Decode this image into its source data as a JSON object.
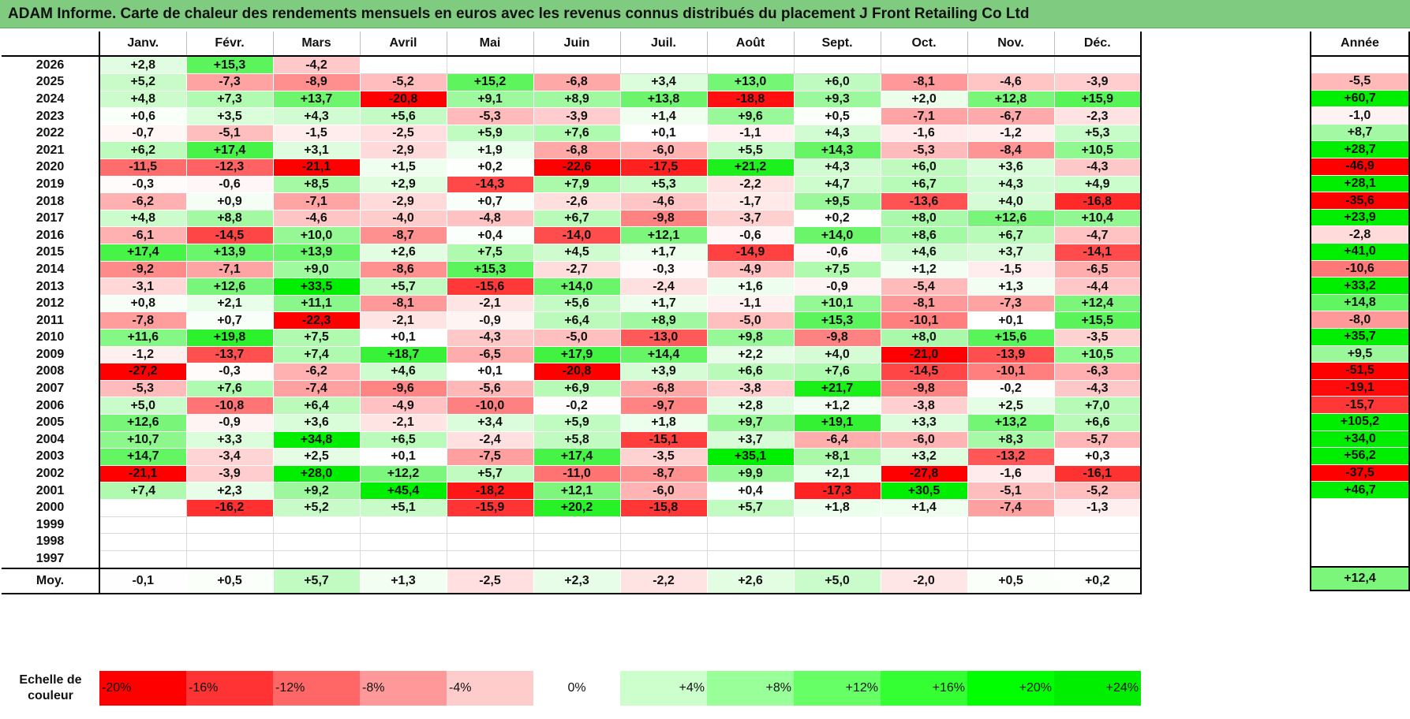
{
  "title": "ADAM Informe. Carte de chaleur des rendements mensuels en euros avec les revenus connus distribués du placement J Front Retailing Co Ltd",
  "chart_data": {
    "type": "heatmap",
    "title": "ADAM Informe. Carte de chaleur des rendements mensuels en euros avec les revenus connus distribués du placement J Front Retailing Co Ltd",
    "columns": [
      "Janv.",
      "Févr.",
      "Mars",
      "Avril",
      "Mai",
      "Juin",
      "Juil.",
      "Août",
      "Sept.",
      "Oct.",
      "Nov.",
      "Déc."
    ],
    "annual_header": "Année",
    "rows": [
      {
        "year": "2026",
        "values": [
          "+2,8",
          "+15,3",
          "-4,2",
          "",
          "",
          "",
          "",
          "",
          "",
          "",
          "",
          ""
        ],
        "annual": ""
      },
      {
        "year": "2025",
        "values": [
          "+5,2",
          "-7,3",
          "-8,9",
          "-5,2",
          "+15,2",
          "-6,8",
          "+3,4",
          "+13,0",
          "+6,0",
          "-8,1",
          "-4,6",
          "-3,9"
        ],
        "annual": "-5,5"
      },
      {
        "year": "2024",
        "values": [
          "+4,8",
          "+7,3",
          "+13,7",
          "-20,8",
          "+9,1",
          "+8,9",
          "+13,8",
          "-18,8",
          "+9,3",
          "+2,0",
          "+12,8",
          "+15,9"
        ],
        "annual": "+60,7"
      },
      {
        "year": "2023",
        "values": [
          "+0,6",
          "+3,5",
          "+4,3",
          "+5,6",
          "-5,3",
          "-3,9",
          "+1,4",
          "+9,6",
          "+0,5",
          "-7,1",
          "-6,7",
          "-2,3"
        ],
        "annual": "-1,0"
      },
      {
        "year": "2022",
        "values": [
          "-0,7",
          "-5,1",
          "-1,5",
          "-2,5",
          "+5,9",
          "+7,6",
          "+0,1",
          "-1,1",
          "+4,3",
          "-1,6",
          "-1,2",
          "+5,3"
        ],
        "annual": "+8,7"
      },
      {
        "year": "2021",
        "values": [
          "+6,2",
          "+17,4",
          "+3,1",
          "-2,9",
          "+1,9",
          "-6,8",
          "-6,0",
          "+5,5",
          "+14,3",
          "-5,3",
          "-8,4",
          "+10,5"
        ],
        "annual": "+28,7"
      },
      {
        "year": "2020",
        "values": [
          "-11,5",
          "-12,3",
          "-21,1",
          "+1,5",
          "+0,2",
          "-22,6",
          "-17,5",
          "+21,2",
          "+4,3",
          "+6,0",
          "+3,6",
          "-4,3"
        ],
        "annual": "-46,9"
      },
      {
        "year": "2019",
        "values": [
          "-0,3",
          "-0,6",
          "+8,5",
          "+2,9",
          "-14,3",
          "+7,9",
          "+5,3",
          "-2,2",
          "+4,7",
          "+6,7",
          "+4,3",
          "+4,9"
        ],
        "annual": "+28,1"
      },
      {
        "year": "2018",
        "values": [
          "-6,2",
          "+0,9",
          "-7,1",
          "-2,9",
          "+0,7",
          "-2,6",
          "-4,6",
          "-1,7",
          "+9,5",
          "-13,6",
          "+4,0",
          "-16,8"
        ],
        "annual": "-35,6"
      },
      {
        "year": "2017",
        "values": [
          "+4,8",
          "+8,8",
          "-4,6",
          "-4,0",
          "-4,8",
          "+6,7",
          "-9,8",
          "-3,7",
          "+0,2",
          "+8,0",
          "+12,6",
          "+10,4"
        ],
        "annual": "+23,9"
      },
      {
        "year": "2016",
        "values": [
          "-6,1",
          "-14,5",
          "+10,0",
          "-8,7",
          "+0,4",
          "-14,0",
          "+12,1",
          "-0,6",
          "+14,0",
          "+8,6",
          "+6,7",
          "-4,7"
        ],
        "annual": "-2,8"
      },
      {
        "year": "2015",
        "values": [
          "+17,4",
          "+13,9",
          "+13,9",
          "+2,6",
          "+7,5",
          "+4,5",
          "+1,7",
          "-14,9",
          "-0,6",
          "+4,6",
          "+3,7",
          "-14,1"
        ],
        "annual": "+41,0"
      },
      {
        "year": "2014",
        "values": [
          "-9,2",
          "-7,1",
          "+9,0",
          "-8,6",
          "+15,3",
          "-2,7",
          "-0,3",
          "-4,9",
          "+7,5",
          "+1,2",
          "-1,5",
          "-6,5"
        ],
        "annual": "-10,6"
      },
      {
        "year": "2013",
        "values": [
          "-3,1",
          "+12,6",
          "+33,5",
          "+5,7",
          "-15,6",
          "+14,0",
          "-2,4",
          "+1,6",
          "-0,9",
          "-5,4",
          "+1,3",
          "-4,4"
        ],
        "annual": "+33,2"
      },
      {
        "year": "2012",
        "values": [
          "+0,8",
          "+2,1",
          "+11,1",
          "-8,1",
          "-2,1",
          "+5,6",
          "+1,7",
          "-1,1",
          "+10,1",
          "-8,1",
          "-7,3",
          "+12,4"
        ],
        "annual": "+14,8"
      },
      {
        "year": "2011",
        "values": [
          "-7,8",
          "+0,7",
          "-22,3",
          "-2,1",
          "-0,9",
          "+6,4",
          "+8,9",
          "-5,0",
          "+15,3",
          "-10,1",
          "+0,1",
          "+15,5"
        ],
        "annual": "-8,0"
      },
      {
        "year": "2010",
        "values": [
          "+11,6",
          "+19,8",
          "+7,5",
          "+0,1",
          "-4,3",
          "-5,0",
          "-13,0",
          "+9,8",
          "-9,8",
          "+8,0",
          "+15,6",
          "-3,5"
        ],
        "annual": "+35,7"
      },
      {
        "year": "2009",
        "values": [
          "-1,2",
          "-13,7",
          "+7,4",
          "+18,7",
          "-6,5",
          "+17,9",
          "+14,4",
          "+2,2",
          "+4,0",
          "-21,0",
          "-13,9",
          "+10,5"
        ],
        "annual": "+9,5"
      },
      {
        "year": "2008",
        "values": [
          "-27,2",
          "-0,3",
          "-6,2",
          "+4,6",
          "+0,1",
          "-20,8",
          "+3,9",
          "+6,6",
          "+7,6",
          "-14,5",
          "-10,1",
          "-6,3"
        ],
        "annual": "-51,5"
      },
      {
        "year": "2007",
        "values": [
          "-5,3",
          "+7,6",
          "-7,4",
          "-9,6",
          "-5,6",
          "+6,9",
          "-6,8",
          "-3,8",
          "+21,7",
          "-9,8",
          "-0,2",
          "-4,3"
        ],
        "annual": "-19,1"
      },
      {
        "year": "2006",
        "values": [
          "+5,0",
          "-10,8",
          "+6,4",
          "-4,9",
          "-10,0",
          "-0,2",
          "-9,7",
          "+2,8",
          "+1,2",
          "-3,8",
          "+2,5",
          "+7,0"
        ],
        "annual": "-15,7"
      },
      {
        "year": "2005",
        "values": [
          "+12,6",
          "-0,9",
          "+3,6",
          "-2,1",
          "+3,4",
          "+5,9",
          "+1,8",
          "+9,7",
          "+19,1",
          "+3,3",
          "+13,2",
          "+6,6"
        ],
        "annual": "+105,2"
      },
      {
        "year": "2004",
        "values": [
          "+10,7",
          "+3,3",
          "+34,8",
          "+6,5",
          "-2,4",
          "+5,8",
          "-15,1",
          "+3,7",
          "-6,4",
          "-6,0",
          "+8,3",
          "-5,7"
        ],
        "annual": "+34,0"
      },
      {
        "year": "2003",
        "values": [
          "+14,7",
          "-3,4",
          "+2,5",
          "+0,1",
          "-7,5",
          "+17,4",
          "-3,5",
          "+35,1",
          "+8,1",
          "+3,2",
          "-13,2",
          "+0,3"
        ],
        "annual": "+56,2"
      },
      {
        "year": "2002",
        "values": [
          "-21,1",
          "-3,9",
          "+28,0",
          "+12,2",
          "+5,7",
          "-11,0",
          "-8,7",
          "+9,9",
          "+2,1",
          "-27,8",
          "-1,6",
          "-16,1"
        ],
        "annual": "-37,5"
      },
      {
        "year": "2001",
        "values": [
          "+7,4",
          "+2,3",
          "+9,2",
          "+45,4",
          "-18,2",
          "+12,1",
          "-6,0",
          "+0,4",
          "-17,3",
          "+30,5",
          "-5,1",
          "-5,2"
        ],
        "annual": "+46,7"
      },
      {
        "year": "2000",
        "values": [
          "",
          "-16,2",
          "+5,2",
          "+5,1",
          "-15,9",
          "+20,2",
          "-15,8",
          "+5,7",
          "+1,8",
          "+1,4",
          "-7,4",
          "-1,3"
        ],
        "annual": ""
      },
      {
        "year": "1999",
        "values": [
          "",
          "",
          "",
          "",
          "",
          "",
          "",
          "",
          "",
          "",
          "",
          ""
        ],
        "annual": ""
      },
      {
        "year": "1998",
        "values": [
          "",
          "",
          "",
          "",
          "",
          "",
          "",
          "",
          "",
          "",
          "",
          ""
        ],
        "annual": ""
      },
      {
        "year": "1997",
        "values": [
          "",
          "",
          "",
          "",
          "",
          "",
          "",
          "",
          "",
          "",
          "",
          ""
        ],
        "annual": ""
      }
    ],
    "average": {
      "label": "Moy.",
      "values": [
        "-0,1",
        "+0,5",
        "+5,7",
        "+1,3",
        "-2,5",
        "+2,3",
        "-2,2",
        "+2,6",
        "+5,0",
        "-2,0",
        "+0,5",
        "+0,2"
      ],
      "annual": "+12,4"
    },
    "scale": {
      "label": "Echelle de couleur",
      "steps": [
        {
          "label": "-20%",
          "value": -20,
          "color": "#ff0000"
        },
        {
          "label": "-16%",
          "value": -16,
          "color": "#ff3333"
        },
        {
          "label": "-12%",
          "value": -12,
          "color": "#ff6666"
        },
        {
          "label": "-8%",
          "value": -8,
          "color": "#ff9999"
        },
        {
          "label": "-4%",
          "value": -4,
          "color": "#ffcccc"
        },
        {
          "label": "0%",
          "value": 0,
          "color": "#ffffff"
        },
        {
          "label": "+4%",
          "value": 4,
          "color": "#ccffcc"
        },
        {
          "label": "+8%",
          "value": 8,
          "color": "#99ff99"
        },
        {
          "label": "+12%",
          "value": 12,
          "color": "#66ff66"
        },
        {
          "label": "+16%",
          "value": 16,
          "color": "#33ff33"
        },
        {
          "label": "+20%",
          "value": 20,
          "color": "#00ff00"
        },
        {
          "label": "+24%",
          "value": 24,
          "color": "#00ee00"
        }
      ]
    }
  }
}
